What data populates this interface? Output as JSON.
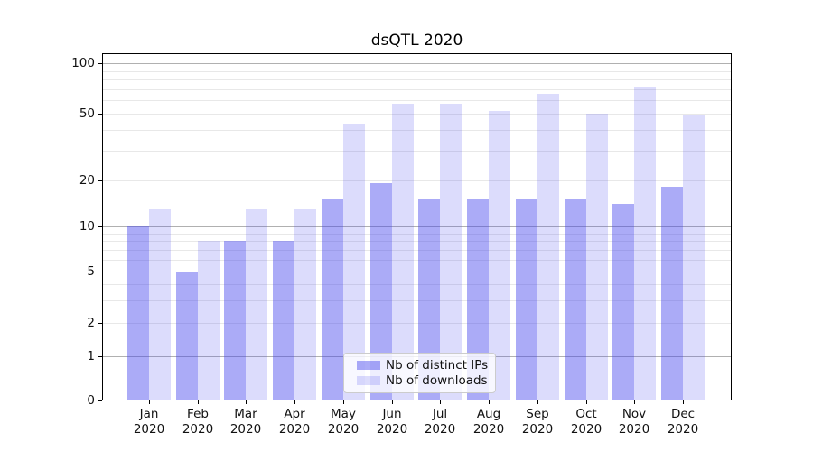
{
  "chart_data": {
    "type": "bar",
    "title": "dsQTL 2020",
    "categories": [
      "Jan",
      "Feb",
      "Mar",
      "Apr",
      "May",
      "Jun",
      "Jul",
      "Aug",
      "Sep",
      "Oct",
      "Nov",
      "Dec"
    ],
    "x_year": "2020",
    "series": [
      {
        "name": "Nb of distinct IPs",
        "color": "#4444ee",
        "opacity": 0.45,
        "values": [
          10,
          5,
          8,
          8,
          15,
          19,
          15,
          15,
          15,
          15,
          14,
          18
        ]
      },
      {
        "name": "Nb of downloads",
        "color": "#4444ee",
        "opacity": 0.19,
        "values": [
          13,
          8,
          13,
          13,
          43,
          57,
          57,
          52,
          66,
          50,
          72,
          49
        ]
      }
    ],
    "y_axis": {
      "scale": "symlog",
      "tick_labels": [
        100,
        50,
        20,
        10,
        5,
        2,
        1,
        0
      ],
      "major_gridlines": [
        1,
        10,
        100
      ],
      "minor_gridlines": [
        2,
        3,
        4,
        5,
        6,
        7,
        8,
        9,
        20,
        30,
        40,
        50,
        60,
        70,
        80,
        90
      ],
      "ylim": [
        0,
        115
      ]
    },
    "xlabel": "",
    "ylabel": "",
    "legend": {
      "position": "bottom-center"
    },
    "grid": "on"
  }
}
